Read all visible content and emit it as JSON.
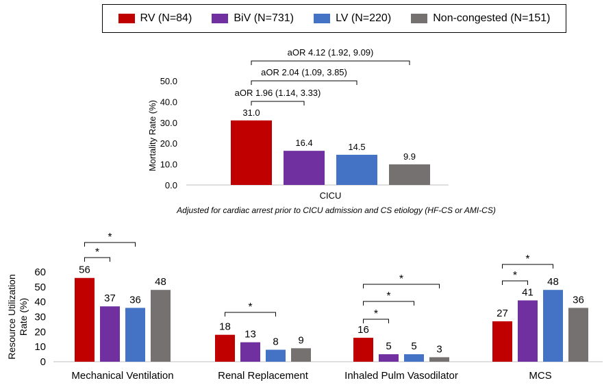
{
  "legend": {
    "items": [
      {
        "label": "RV (N=84)",
        "color": "#c00000"
      },
      {
        "label": "BiV (N=731)",
        "color": "#7030a0"
      },
      {
        "label": "LV (N=220)",
        "color": "#4472c4"
      },
      {
        "label": "Non-congested (N=151)",
        "color": "#767171"
      }
    ]
  },
  "chart_data": [
    {
      "type": "bar",
      "title": "",
      "xlabel": "",
      "ylabel": "Mortality Rate (%)",
      "ylim": [
        0,
        50
      ],
      "yticks": [
        "0.0",
        "10.0",
        "20.0",
        "30.0",
        "40.0",
        "50.0"
      ],
      "categories": [
        "CICU"
      ],
      "series": [
        {
          "name": "RV (N=84)",
          "values": [
            31.0
          ],
          "labels": [
            "31.0"
          ]
        },
        {
          "name": "BiV (N=731)",
          "values": [
            16.4
          ],
          "labels": [
            "16.4"
          ]
        },
        {
          "name": "LV (N=220)",
          "values": [
            14.5
          ],
          "labels": [
            "14.5"
          ]
        },
        {
          "name": "Non-congested (N=151)",
          "values": [
            9.9
          ],
          "labels": [
            "9.9"
          ]
        }
      ],
      "annotations": [
        "aOR 1.96 (1.14, 3.33)",
        "aOR 2.04 (1.09, 3.85)",
        "aOR 4.12 (1.92, 9.09)"
      ],
      "footnote": "Adjusted for cardiac arrest prior to CICU admission and CS etiology (HF-CS or AMI-CS)"
    },
    {
      "type": "bar",
      "title": "",
      "xlabel": "",
      "ylabel": "Resource Utilization Rate (%)",
      "ylabel_lines": [
        "Resource Utilization",
        "Rate (%)"
      ],
      "ylim": [
        0,
        60
      ],
      "yticks": [
        "0",
        "10",
        "20",
        "30",
        "40",
        "50",
        "60"
      ],
      "categories": [
        "Mechanical Ventilation",
        "Renal Replacement",
        "Inhaled Pulm Vasodilator",
        "MCS"
      ],
      "series": [
        {
          "name": "RV (N=84)",
          "values": [
            56,
            18,
            16,
            27
          ]
        },
        {
          "name": "BiV (N=731)",
          "values": [
            37,
            13,
            5,
            41
          ]
        },
        {
          "name": "LV (N=220)",
          "values": [
            36,
            8,
            5,
            48
          ]
        },
        {
          "name": "Non-congested (N=151)",
          "values": [
            48,
            9,
            3,
            36
          ]
        }
      ],
      "significance_marker": "*"
    }
  ]
}
